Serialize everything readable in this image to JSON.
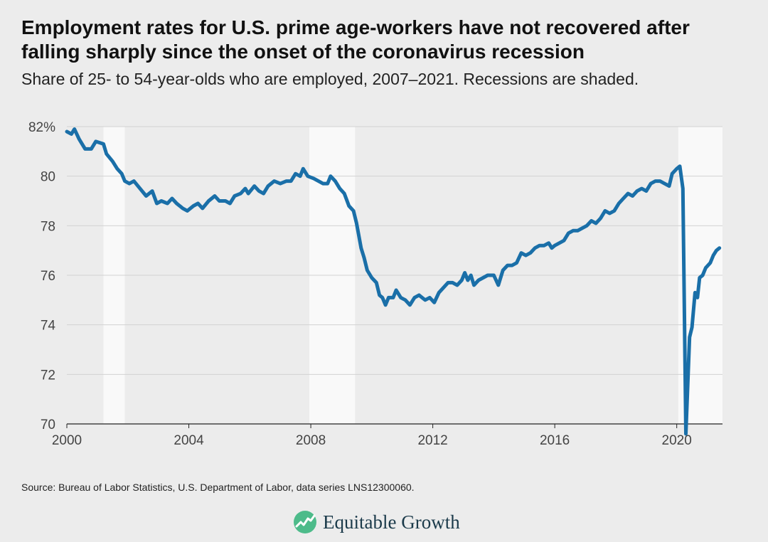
{
  "title": "Employment rates for U.S. prime age-workers have not recovered after falling sharply since the onset of the coronavirus recession",
  "subtitle": "Share of 25- to 54-year-olds who are employed, 2007–2021. Recessions are shaded.",
  "source": "Source: Bureau of Labor Statistics, U.S. Department of Labor, data series LNS12300060.",
  "brand": {
    "name": "Equitable Growth",
    "logo_icon": "equitable-growth-logo-icon"
  },
  "colors": {
    "line": "#1a6fa8",
    "recession": "#f9f9f9",
    "plot_bg": "#ececec",
    "grid": "#d2d2d2",
    "logo_green": "#4dbb8a",
    "logo_text": "#1b3a4a"
  },
  "chart_data": {
    "type": "line",
    "title": "",
    "xlabel": "",
    "ylabel": "",
    "xlim": [
      2000,
      2021.5
    ],
    "ylim": [
      70,
      82
    ],
    "x_ticks": [
      2000,
      2004,
      2008,
      2012,
      2016,
      2020
    ],
    "x_tick_labels": [
      "2000",
      "2004",
      "2008",
      "2012",
      "2016",
      "2020"
    ],
    "y_ticks": [
      70,
      72,
      74,
      76,
      78,
      80,
      82
    ],
    "y_tick_labels": [
      "70",
      "72",
      "74",
      "76",
      "78",
      "80",
      "82%"
    ],
    "grid": "horizontal",
    "recessions": [
      {
        "start": 2001.2,
        "end": 2001.9
      },
      {
        "start": 2007.95,
        "end": 2009.45
      },
      {
        "start": 2020.05,
        "end": 2021.6
      }
    ],
    "series": [
      {
        "values": [
          [
            2000.0,
            81.8
          ],
          [
            2000.15,
            81.7
          ],
          [
            2000.25,
            81.9
          ],
          [
            2000.4,
            81.5
          ],
          [
            2000.6,
            81.1
          ],
          [
            2000.8,
            81.1
          ],
          [
            2000.95,
            81.4
          ],
          [
            2001.2,
            81.3
          ],
          [
            2001.3,
            80.9
          ],
          [
            2001.5,
            80.6
          ],
          [
            2001.65,
            80.3
          ],
          [
            2001.8,
            80.1
          ],
          [
            2001.9,
            79.8
          ],
          [
            2002.05,
            79.7
          ],
          [
            2002.2,
            79.8
          ],
          [
            2002.4,
            79.5
          ],
          [
            2002.6,
            79.2
          ],
          [
            2002.8,
            79.4
          ],
          [
            2002.95,
            78.9
          ],
          [
            2003.1,
            79.0
          ],
          [
            2003.3,
            78.9
          ],
          [
            2003.45,
            79.1
          ],
          [
            2003.6,
            78.9
          ],
          [
            2003.8,
            78.7
          ],
          [
            2003.95,
            78.6
          ],
          [
            2004.15,
            78.8
          ],
          [
            2004.3,
            78.9
          ],
          [
            2004.45,
            78.7
          ],
          [
            2004.65,
            79.0
          ],
          [
            2004.85,
            79.2
          ],
          [
            2005.0,
            79.0
          ],
          [
            2005.2,
            79.0
          ],
          [
            2005.35,
            78.9
          ],
          [
            2005.5,
            79.2
          ],
          [
            2005.7,
            79.3
          ],
          [
            2005.85,
            79.5
          ],
          [
            2005.95,
            79.3
          ],
          [
            2006.15,
            79.6
          ],
          [
            2006.3,
            79.4
          ],
          [
            2006.45,
            79.3
          ],
          [
            2006.6,
            79.6
          ],
          [
            2006.8,
            79.8
          ],
          [
            2007.0,
            79.7
          ],
          [
            2007.2,
            79.8
          ],
          [
            2007.35,
            79.8
          ],
          [
            2007.5,
            80.1
          ],
          [
            2007.65,
            80.0
          ],
          [
            2007.75,
            80.3
          ],
          [
            2007.9,
            80.0
          ],
          [
            2008.1,
            79.9
          ],
          [
            2008.25,
            79.8
          ],
          [
            2008.4,
            79.7
          ],
          [
            2008.55,
            79.7
          ],
          [
            2008.65,
            80.0
          ],
          [
            2008.8,
            79.8
          ],
          [
            2008.95,
            79.5
          ],
          [
            2009.1,
            79.3
          ],
          [
            2009.25,
            78.8
          ],
          [
            2009.4,
            78.6
          ],
          [
            2009.5,
            78.1
          ],
          [
            2009.65,
            77.1
          ],
          [
            2009.75,
            76.7
          ],
          [
            2009.85,
            76.2
          ],
          [
            2010.0,
            75.9
          ],
          [
            2010.15,
            75.7
          ],
          [
            2010.25,
            75.2
          ],
          [
            2010.35,
            75.1
          ],
          [
            2010.45,
            74.8
          ],
          [
            2010.55,
            75.1
          ],
          [
            2010.7,
            75.1
          ],
          [
            2010.8,
            75.4
          ],
          [
            2010.95,
            75.1
          ],
          [
            2011.1,
            75.0
          ],
          [
            2011.25,
            74.8
          ],
          [
            2011.4,
            75.1
          ],
          [
            2011.55,
            75.2
          ],
          [
            2011.65,
            75.1
          ],
          [
            2011.75,
            75.0
          ],
          [
            2011.9,
            75.1
          ],
          [
            2012.05,
            74.9
          ],
          [
            2012.2,
            75.3
          ],
          [
            2012.35,
            75.5
          ],
          [
            2012.5,
            75.7
          ],
          [
            2012.65,
            75.7
          ],
          [
            2012.8,
            75.6
          ],
          [
            2012.95,
            75.8
          ],
          [
            2013.05,
            76.1
          ],
          [
            2013.15,
            75.8
          ],
          [
            2013.25,
            76.0
          ],
          [
            2013.35,
            75.6
          ],
          [
            2013.5,
            75.8
          ],
          [
            2013.65,
            75.9
          ],
          [
            2013.8,
            76.0
          ],
          [
            2014.0,
            76.0
          ],
          [
            2014.15,
            75.6
          ],
          [
            2014.3,
            76.2
          ],
          [
            2014.45,
            76.4
          ],
          [
            2014.6,
            76.4
          ],
          [
            2014.75,
            76.5
          ],
          [
            2014.9,
            76.9
          ],
          [
            2015.05,
            76.8
          ],
          [
            2015.2,
            76.9
          ],
          [
            2015.35,
            77.1
          ],
          [
            2015.5,
            77.2
          ],
          [
            2015.65,
            77.2
          ],
          [
            2015.8,
            77.3
          ],
          [
            2015.9,
            77.1
          ],
          [
            2016.0,
            77.2
          ],
          [
            2016.15,
            77.3
          ],
          [
            2016.3,
            77.4
          ],
          [
            2016.45,
            77.7
          ],
          [
            2016.6,
            77.8
          ],
          [
            2016.75,
            77.8
          ],
          [
            2016.9,
            77.9
          ],
          [
            2017.05,
            78.0
          ],
          [
            2017.2,
            78.2
          ],
          [
            2017.35,
            78.1
          ],
          [
            2017.5,
            78.3
          ],
          [
            2017.65,
            78.6
          ],
          [
            2017.8,
            78.5
          ],
          [
            2017.95,
            78.6
          ],
          [
            2018.1,
            78.9
          ],
          [
            2018.25,
            79.1
          ],
          [
            2018.4,
            79.3
          ],
          [
            2018.55,
            79.2
          ],
          [
            2018.7,
            79.4
          ],
          [
            2018.85,
            79.5
          ],
          [
            2019.0,
            79.4
          ],
          [
            2019.15,
            79.7
          ],
          [
            2019.3,
            79.8
          ],
          [
            2019.45,
            79.8
          ],
          [
            2019.6,
            79.7
          ],
          [
            2019.75,
            79.6
          ],
          [
            2019.85,
            80.1
          ],
          [
            2020.0,
            80.3
          ],
          [
            2020.1,
            80.4
          ],
          [
            2020.2,
            79.5
          ],
          [
            2020.3,
            69.6
          ],
          [
            2020.42,
            73.5
          ],
          [
            2020.5,
            73.9
          ],
          [
            2020.6,
            75.3
          ],
          [
            2020.68,
            75.1
          ],
          [
            2020.75,
            75.9
          ],
          [
            2020.85,
            76.0
          ],
          [
            2020.95,
            76.3
          ],
          [
            2021.1,
            76.5
          ],
          [
            2021.2,
            76.8
          ],
          [
            2021.3,
            77.0
          ],
          [
            2021.4,
            77.1
          ]
        ]
      }
    ]
  }
}
